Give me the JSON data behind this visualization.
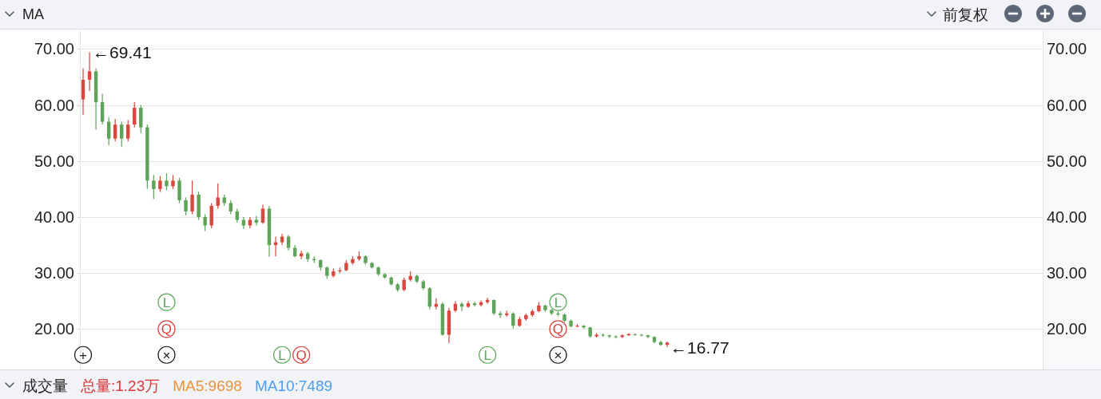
{
  "chart_data": {
    "type": "candlestick",
    "title": "MA",
    "annotations": [
      "前复权",
      "成交量",
      "总量:1.23万",
      "MA5:9698",
      "MA10:7489",
      "←69.41",
      "←16.77"
    ],
    "categories": [
      null,
      null,
      null,
      null,
      null,
      null,
      null,
      null,
      null,
      null,
      null,
      null,
      null,
      null,
      null,
      null,
      null,
      null,
      null,
      null,
      null,
      null,
      null,
      null,
      null,
      null,
      null,
      null,
      null,
      null,
      null,
      null,
      null,
      null,
      null,
      null,
      null,
      null,
      null,
      null,
      null,
      null,
      null,
      null,
      null,
      null,
      null,
      null,
      null,
      null,
      null,
      null,
      null,
      null,
      null,
      null,
      null,
      null,
      null,
      null,
      null,
      null,
      null,
      null,
      null,
      null,
      null,
      null,
      null,
      null,
      null,
      null,
      null,
      null,
      null,
      null,
      null,
      null,
      null,
      null,
      null,
      null,
      null,
      null,
      null,
      null,
      null,
      null,
      null,
      null,
      null,
      null,
      null,
      null,
      null,
      null,
      null,
      null,
      null,
      null,
      null,
      null,
      null,
      null,
      null,
      null,
      null,
      null,
      null,
      null,
      null,
      null,
      null,
      null,
      null,
      null,
      null,
      null,
      null,
      null,
      null,
      null,
      null,
      null,
      null,
      null,
      null,
      null,
      null,
      null,
      null,
      null,
      null,
      null,
      null,
      null,
      null,
      null,
      null,
      null,
      null,
      null,
      null,
      null,
      null,
      null,
      null,
      null,
      null,
      null
    ],
    "ohlc": [
      [
        61,
        66.5,
        58.2,
        64.5
      ],
      [
        64.5,
        69.41,
        62.5,
        66
      ],
      [
        66,
        66.5,
        55.6,
        60.5
      ],
      [
        60.5,
        62,
        56.5,
        57
      ],
      [
        57,
        57.8,
        52.8,
        54
      ],
      [
        54,
        57.5,
        53.5,
        56.5
      ],
      [
        56.5,
        57,
        52.5,
        54
      ],
      [
        54,
        57.3,
        53.5,
        56.5
      ],
      [
        56.5,
        60.5,
        56,
        59.5
      ],
      [
        59.5,
        60,
        55,
        56
      ],
      [
        56,
        56.5,
        45,
        46.5
      ],
      [
        46.5,
        47.5,
        43.2,
        45
      ],
      [
        45,
        47.3,
        44.5,
        46.5
      ],
      [
        46.5,
        47.8,
        44.8,
        45.5
      ],
      [
        45.5,
        47.5,
        45,
        46.5
      ],
      [
        46.5,
        47,
        42.5,
        43
      ],
      [
        43,
        43.5,
        40.3,
        41
      ],
      [
        41,
        46.5,
        40.5,
        44
      ],
      [
        44,
        44.5,
        39.5,
        40
      ],
      [
        40,
        40.5,
        37.5,
        38.5
      ],
      [
        38.5,
        42.5,
        38,
        42
      ],
      [
        42,
        46,
        41.5,
        43.5
      ],
      [
        43.5,
        44,
        42,
        42.5
      ],
      [
        42.5,
        43,
        40.5,
        41
      ],
      [
        41,
        41.5,
        39,
        39.5
      ],
      [
        39.5,
        40,
        37.9,
        38.5
      ],
      [
        38.5,
        40,
        38,
        39.5
      ],
      [
        39.5,
        40.2,
        38.5,
        39
      ],
      [
        39,
        42.2,
        38.8,
        41.5
      ],
      [
        41.5,
        42,
        32.9,
        35
      ],
      [
        35,
        36.5,
        33,
        35.5
      ],
      [
        35.5,
        37,
        35,
        36.5
      ],
      [
        36.5,
        36.8,
        34,
        34.5
      ],
      [
        34.5,
        35,
        32.8,
        33
      ],
      [
        33,
        34,
        32.5,
        33.5
      ],
      [
        33.5,
        33.8,
        32,
        32.5
      ],
      [
        32.5,
        33,
        31.8,
        32.3
      ],
      [
        32.3,
        32.5,
        30.5,
        31
      ],
      [
        31,
        31.2,
        29,
        29.5
      ],
      [
        29.5,
        30.8,
        29.2,
        30.3
      ],
      [
        30.3,
        31,
        30,
        30.5
      ],
      [
        30.5,
        32.3,
        30.3,
        31.8
      ],
      [
        31.8,
        33,
        31.5,
        32.5
      ],
      [
        32.5,
        33.9,
        32.2,
        33
      ],
      [
        33,
        33.2,
        31.5,
        31.8
      ],
      [
        31.8,
        32,
        30.8,
        31
      ],
      [
        31,
        31.2,
        29.5,
        29.8
      ],
      [
        29.8,
        30,
        29,
        29.2
      ],
      [
        29.2,
        29.4,
        27.8,
        28
      ],
      [
        28,
        28.2,
        26.7,
        27
      ],
      [
        27,
        29.2,
        26.8,
        28.8
      ],
      [
        28.8,
        30.3,
        28.5,
        29.5
      ],
      [
        29.5,
        29.7,
        28.2,
        28.5
      ],
      [
        28.5,
        28.8,
        27,
        27.3
      ],
      [
        27.3,
        27.5,
        23.5,
        24
      ],
      [
        24,
        25.5,
        23.5,
        24.5
      ],
      [
        24.5,
        24.8,
        18.8,
        19
      ],
      [
        19,
        23.8,
        17.5,
        23.3
      ],
      [
        23.3,
        25,
        23,
        24.5
      ],
      [
        24.5,
        24.8,
        23.2,
        24
      ],
      [
        24,
        25,
        23.8,
        24.6
      ],
      [
        24.6,
        24.9,
        24,
        24.3
      ],
      [
        24.3,
        25.1,
        24,
        24.8
      ],
      [
        24.8,
        25.6,
        24.5,
        25.2
      ],
      [
        25.2,
        25.3,
        22.5,
        22.8
      ],
      [
        22.8,
        23.2,
        22,
        22.5
      ],
      [
        22.5,
        23.3,
        22.2,
        22.8
      ],
      [
        22.8,
        23,
        20.1,
        20.6
      ],
      [
        20.6,
        22.2,
        20.4,
        21.8
      ],
      [
        21.8,
        22.8,
        21.5,
        22.5
      ],
      [
        22.5,
        23.5,
        22.2,
        23.2
      ],
      [
        23.2,
        24.8,
        23,
        24.2
      ],
      [
        24.2,
        24.4,
        23.1,
        23.4
      ],
      [
        23.4,
        23.6,
        22.5,
        22.8
      ],
      [
        22.8,
        23.2,
        22.3,
        22.6
      ],
      [
        22.6,
        22.8,
        21.2,
        21.5
      ],
      [
        21.5,
        21.7,
        20.3,
        20.5
      ],
      [
        20.5,
        20.9,
        20.3,
        20.6
      ],
      [
        20.6,
        20.7,
        20.1,
        20.3
      ],
      [
        20.3,
        20.4,
        18.5,
        18.7
      ],
      [
        18.7,
        19.3,
        18.5,
        19
      ],
      [
        19,
        19.2,
        18.6,
        18.9
      ],
      [
        18.9,
        19,
        18.4,
        18.7
      ],
      [
        18.7,
        18.9,
        18.3,
        18.6
      ],
      [
        18.6,
        19.1,
        18.4,
        18.9
      ],
      [
        18.9,
        19.3,
        18.8,
        19.1
      ],
      [
        19.1,
        19.2,
        18.8,
        19
      ],
      [
        19,
        19.1,
        18.7,
        18.9
      ],
      [
        18.9,
        19,
        18.4,
        18.6
      ],
      [
        18.6,
        18.7,
        17.5,
        17.7
      ],
      [
        17.7,
        17.9,
        17,
        17.2
      ],
      [
        17.2,
        17.8,
        16.77,
        17.6
      ],
      null,
      null,
      null,
      null,
      null,
      null,
      null,
      null,
      null,
      null,
      null,
      null,
      null,
      null,
      null,
      null,
      null,
      null,
      null,
      null,
      null,
      null,
      null,
      null,
      null,
      null,
      null,
      null,
      null,
      null,
      null,
      null,
      null,
      null,
      null,
      null,
      null,
      null,
      null,
      null,
      null,
      null,
      null,
      null,
      null,
      null,
      null,
      null,
      null,
      null,
      null,
      null,
      null,
      null,
      null,
      null,
      null,
      null
    ],
    "series": [
      {
        "type": "scatter",
        "name": "L",
        "color": "#5aa65a",
        "marker": "circle",
        "values": [
          null,
          null,
          null,
          null,
          null,
          null,
          null,
          null,
          null,
          null,
          null,
          null,
          null,
          24.8,
          null,
          null,
          null,
          null,
          null,
          null,
          null,
          null,
          null,
          null,
          null,
          null,
          null,
          null,
          null,
          null,
          null,
          15.4,
          null,
          null,
          null,
          null,
          null,
          null,
          null,
          null,
          null,
          null,
          null,
          null,
          null,
          null,
          null,
          null,
          null,
          null,
          null,
          null,
          null,
          null,
          null,
          null,
          null,
          null,
          null,
          null,
          null,
          null,
          null,
          15.4,
          null,
          null,
          null,
          null,
          null,
          null,
          null,
          null,
          null,
          null,
          24.8,
          null,
          null,
          null,
          null,
          null,
          null,
          null,
          null,
          null,
          null,
          null,
          null,
          null,
          null,
          null,
          null,
          null,
          null,
          null,
          null,
          null,
          null,
          null,
          null,
          null,
          null,
          null,
          null,
          null,
          null,
          null,
          null,
          null,
          null,
          null,
          null,
          null,
          null,
          null,
          null,
          null,
          null,
          null,
          null,
          null,
          null,
          null,
          null,
          null,
          null,
          null,
          null,
          null,
          null,
          null,
          null,
          null,
          null,
          null,
          null,
          null,
          null,
          null,
          null,
          null,
          null,
          null,
          null,
          null,
          null,
          null,
          null,
          null,
          null,
          null
        ]
      },
      {
        "type": "scatter",
        "name": "Q",
        "color": "#d9433e",
        "marker": "circle",
        "values": [
          null,
          null,
          null,
          null,
          null,
          null,
          null,
          null,
          null,
          null,
          null,
          null,
          null,
          20,
          null,
          null,
          null,
          null,
          null,
          null,
          null,
          null,
          null,
          null,
          null,
          null,
          null,
          null,
          null,
          null,
          null,
          null,
          null,
          null,
          15.4,
          null,
          null,
          null,
          null,
          null,
          null,
          null,
          null,
          null,
          null,
          null,
          null,
          null,
          null,
          null,
          null,
          null,
          null,
          null,
          null,
          null,
          null,
          null,
          null,
          null,
          null,
          null,
          null,
          null,
          null,
          null,
          null,
          null,
          null,
          null,
          null,
          null,
          null,
          null,
          20,
          null,
          null,
          null,
          null,
          null,
          null,
          null,
          null,
          null,
          null,
          null,
          null,
          null,
          null,
          null,
          null,
          null,
          null,
          null,
          null,
          null,
          null,
          null,
          null,
          null,
          null,
          null,
          null,
          null,
          null,
          null,
          null,
          null,
          null,
          null,
          null,
          null,
          null,
          null,
          null,
          null,
          null,
          null,
          null,
          null,
          null,
          null,
          null,
          null,
          null,
          null,
          null,
          null,
          null,
          null,
          null,
          null,
          null,
          null,
          null,
          null,
          null,
          null,
          null,
          null,
          null,
          null,
          null,
          null,
          null,
          null,
          null,
          null,
          null,
          null
        ]
      },
      {
        "type": "scatter",
        "name": "×",
        "color": "#1a1a1a",
        "marker": "circle",
        "values": [
          null,
          null,
          null,
          null,
          null,
          null,
          null,
          null,
          null,
          null,
          null,
          null,
          null,
          15.4,
          null,
          null,
          null,
          null,
          null,
          null,
          null,
          null,
          null,
          null,
          null,
          null,
          null,
          null,
          null,
          null,
          null,
          null,
          null,
          null,
          null,
          null,
          null,
          null,
          null,
          null,
          null,
          null,
          null,
          null,
          null,
          null,
          null,
          null,
          null,
          null,
          null,
          null,
          null,
          null,
          null,
          null,
          null,
          null,
          null,
          null,
          null,
          null,
          null,
          null,
          null,
          null,
          null,
          null,
          null,
          null,
          null,
          null,
          null,
          null,
          15.4,
          null,
          null,
          null,
          null,
          null,
          null,
          null,
          null,
          null,
          null,
          null,
          null,
          null,
          null,
          null,
          null,
          null,
          null,
          null,
          null,
          null,
          null,
          null,
          null,
          null,
          null,
          null,
          null,
          null,
          null,
          null,
          null,
          null,
          null,
          null,
          null,
          null,
          null,
          null,
          null,
          null,
          null,
          null,
          null,
          null,
          null,
          null,
          null,
          null,
          null,
          null,
          null,
          null,
          null,
          null,
          null,
          null,
          null,
          null,
          null,
          null,
          null,
          null,
          null,
          null,
          null,
          null,
          null,
          null,
          null,
          null,
          null,
          null,
          null,
          null
        ]
      },
      {
        "type": "scatter",
        "name": "+",
        "color": "#1a1a1a",
        "marker": "circle",
        "values": [
          15.4,
          null,
          null,
          null,
          null,
          null,
          null,
          null,
          null,
          null,
          null,
          null,
          null,
          null,
          null,
          null,
          null,
          null,
          null,
          null,
          null,
          null,
          null,
          null,
          null,
          null,
          null,
          null,
          null,
          null,
          null,
          null,
          null,
          null,
          null,
          null,
          null,
          null,
          null,
          null,
          null,
          null,
          null,
          null,
          null,
          null,
          null,
          null,
          null,
          null,
          null,
          null,
          null,
          null,
          null,
          null,
          null,
          null,
          null,
          null,
          null,
          null,
          null,
          null,
          null,
          null,
          null,
          null,
          null,
          null,
          null,
          null,
          null,
          null,
          null,
          null,
          null,
          null,
          null,
          null,
          null,
          null,
          null,
          null,
          null,
          null,
          null,
          null,
          null,
          null,
          null,
          null,
          null,
          null,
          null,
          null,
          null,
          null,
          null,
          null,
          null,
          null,
          null,
          null,
          null,
          null,
          null,
          null,
          null,
          null,
          null,
          null,
          null,
          null,
          null,
          null,
          null,
          null,
          null,
          null,
          null,
          null,
          null,
          null,
          null,
          null,
          null,
          null,
          null,
          null,
          null,
          null,
          null,
          null,
          null,
          null,
          null,
          null,
          null,
          null,
          null,
          null,
          null,
          null,
          null,
          null,
          null,
          null,
          null,
          null
        ]
      }
    ],
    "ylim": [
      12.8,
      73.6
    ],
    "yticks": [
      {
        "value": 20,
        "label": "20.00"
      },
      {
        "value": 30,
        "label": "30.00"
      },
      {
        "value": 40,
        "label": "40.00"
      },
      {
        "value": 50,
        "label": "50.00"
      },
      {
        "value": 60,
        "label": "60.00"
      },
      {
        "value": 70,
        "label": "70.00"
      }
    ],
    "y2lim": [
      12.8,
      73.6
    ],
    "y2ticks": [
      {
        "value": 20,
        "label": "20.00"
      },
      {
        "value": 30,
        "label": "30.00"
      },
      {
        "value": 40,
        "label": "40.00"
      },
      {
        "value": 50,
        "label": "50.00"
      },
      {
        "value": 60,
        "label": "60.00"
      },
      {
        "value": 70,
        "label": "70.00"
      }
    ],
    "grid": "y"
  }
}
